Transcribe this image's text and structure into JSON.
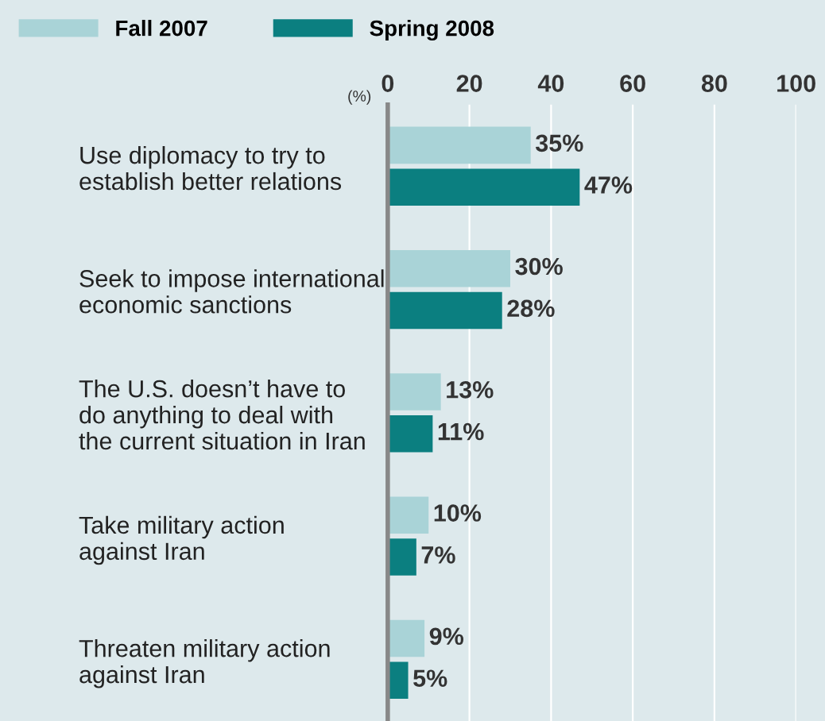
{
  "chart_data": {
    "type": "bar",
    "orientation": "horizontal",
    "categories": [
      "Use diplomacy to try to\nestablish better relations",
      "Seek to impose international\neconomic sanctions",
      "The U.S. doesn’t have to\ndo anything to deal with\nthe current situation in Iran",
      "Take military action\nagainst Iran",
      "Threaten military action\nagainst Iran"
    ],
    "series": [
      {
        "name": "Fall 2007",
        "color": "#a9d3d7",
        "values": [
          35,
          30,
          13,
          10,
          9
        ],
        "value_labels": [
          "35%",
          "30%",
          "13%",
          "10%",
          "9%"
        ]
      },
      {
        "name": "Spring 2008",
        "color": "#0b7f80",
        "values": [
          47,
          28,
          11,
          7,
          5
        ],
        "value_labels": [
          "47%",
          "28%",
          "11%",
          "7%",
          "5%"
        ]
      }
    ],
    "xlabel": "(%)",
    "xlim": [
      0,
      100
    ],
    "xticks": [
      0,
      20,
      40,
      60,
      80,
      100
    ],
    "grid": "x",
    "legend": "top left"
  }
}
